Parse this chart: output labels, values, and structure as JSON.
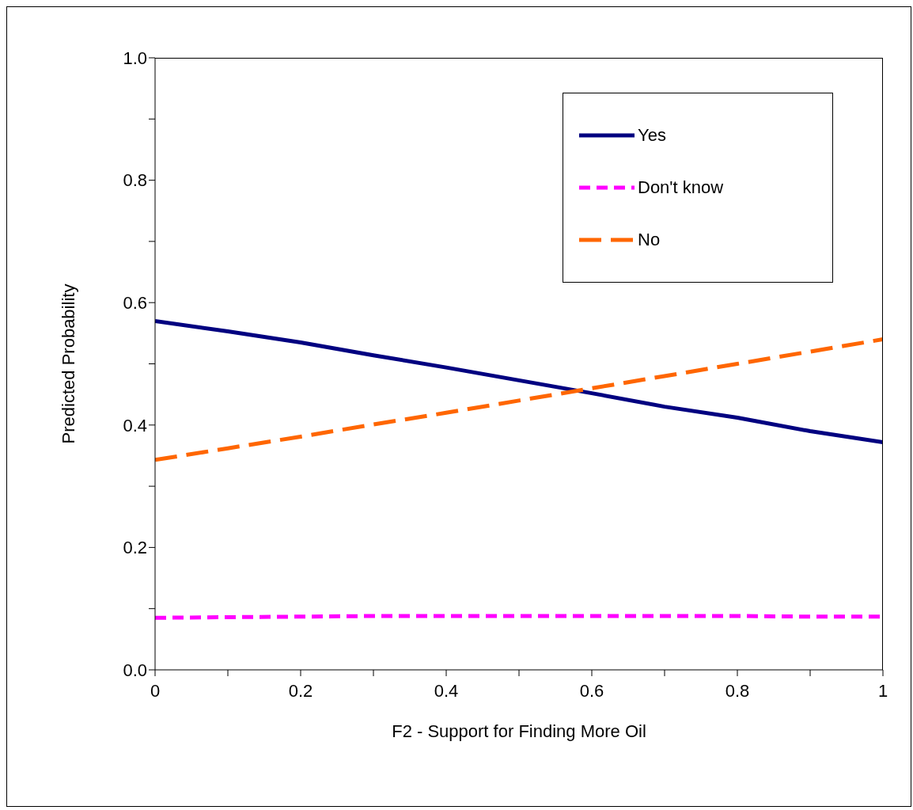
{
  "chart_data": {
    "type": "line",
    "xlabel": "F2 - Support for Finding More Oil",
    "ylabel": "Predicted Probability",
    "x": [
      0,
      0.1,
      0.2,
      0.3,
      0.4,
      0.5,
      0.6,
      0.7,
      0.8,
      0.9,
      1
    ],
    "series": [
      {
        "name": "Yes",
        "color": "#000080",
        "line_style": "solid",
        "values": [
          0.57,
          0.553,
          0.535,
          0.514,
          0.494,
          0.473,
          0.452,
          0.43,
          0.412,
          0.39,
          0.372
        ]
      },
      {
        "name": "Don't know",
        "color": "#ff00ff",
        "line_style": "dashed",
        "values": [
          0.085,
          0.086,
          0.087,
          0.088,
          0.088,
          0.088,
          0.088,
          0.088,
          0.088,
          0.087,
          0.087
        ]
      },
      {
        "name": "No",
        "color": "#ff6600",
        "line_style": "dashed",
        "values": [
          0.343,
          0.362,
          0.381,
          0.401,
          0.42,
          0.44,
          0.46,
          0.48,
          0.5,
          0.52,
          0.54
        ]
      }
    ],
    "xlim": [
      0,
      1
    ],
    "xticks": [
      0,
      {
        "value": 0.1,
        "label": null
      },
      0.2,
      {
        "value": 0.3,
        "label": null
      },
      0.4,
      {
        "value": 0.5,
        "label": null
      },
      0.6,
      {
        "value": 0.7,
        "label": null
      },
      0.8,
      {
        "value": 0.9,
        "label": null
      },
      1
    ],
    "ylim": [
      0,
      1
    ],
    "yticks": [
      {
        "value": 0,
        "label": "0.0"
      },
      {
        "value": 0.1,
        "label": null
      },
      0.2,
      {
        "value": 0.3,
        "label": null
      },
      0.4,
      {
        "value": 0.5,
        "label": null
      },
      0.6,
      {
        "value": 0.7,
        "label": null
      },
      0.8,
      {
        "value": 0.9,
        "label": null
      },
      {
        "value": 1,
        "label": "1.0"
      }
    ],
    "grid": false,
    "legend": "top right",
    "marker": "none"
  }
}
